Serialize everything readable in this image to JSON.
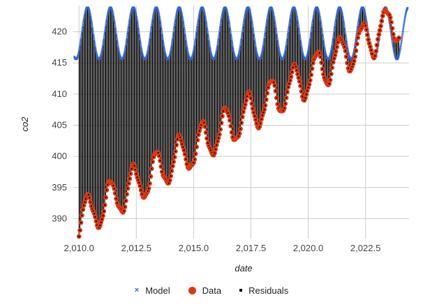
{
  "chart_data": {
    "type": "scatter",
    "title": "",
    "xlabel": "date",
    "ylabel": "co2",
    "xlim": [
      2009.75,
      2024.4
    ],
    "ylim": [
      386.8,
      424.2
    ],
    "x_ticks": [
      {
        "value": 2010.0,
        "label": "2,010.0"
      },
      {
        "value": 2012.5,
        "label": "2,012.5"
      },
      {
        "value": 2015.0,
        "label": "2,015.0"
      },
      {
        "value": 2017.5,
        "label": "2,017.5"
      },
      {
        "value": 2020.0,
        "label": "2,020.0"
      },
      {
        "value": 2022.5,
        "label": "2,022.5"
      }
    ],
    "y_ticks": [
      {
        "value": 390,
        "label": "390"
      },
      {
        "value": 395,
        "label": "395"
      },
      {
        "value": 400,
        "label": "400"
      },
      {
        "value": 405,
        "label": "405"
      },
      {
        "value": 410,
        "label": "410"
      },
      {
        "value": 415,
        "label": "415"
      },
      {
        "value": 420,
        "label": "420"
      }
    ],
    "grid": true,
    "legend_position": "bottom",
    "sampling": {
      "start": 2010.0,
      "end": 2024.0,
      "step": 0.0416667
    },
    "model": {
      "name": "Model",
      "marker": "x",
      "color": "#3366cc",
      "mean": 419.75,
      "amplitude": 4.15,
      "period": 1.0,
      "peak_phase": 0.37,
      "x_range": [
        2009.8,
        2024.35
      ]
    },
    "data": {
      "name": "Data",
      "marker": "circle",
      "color": "#dc3912",
      "trend_start": 389.8,
      "trend_slope": 2.3,
      "amplitude": 3.1,
      "peak_phase": 0.37
    },
    "residuals": {
      "name": "Residuals",
      "marker": "square",
      "color": "#000000"
    },
    "legend": [
      "Model",
      "Data",
      "Residuals"
    ]
  }
}
